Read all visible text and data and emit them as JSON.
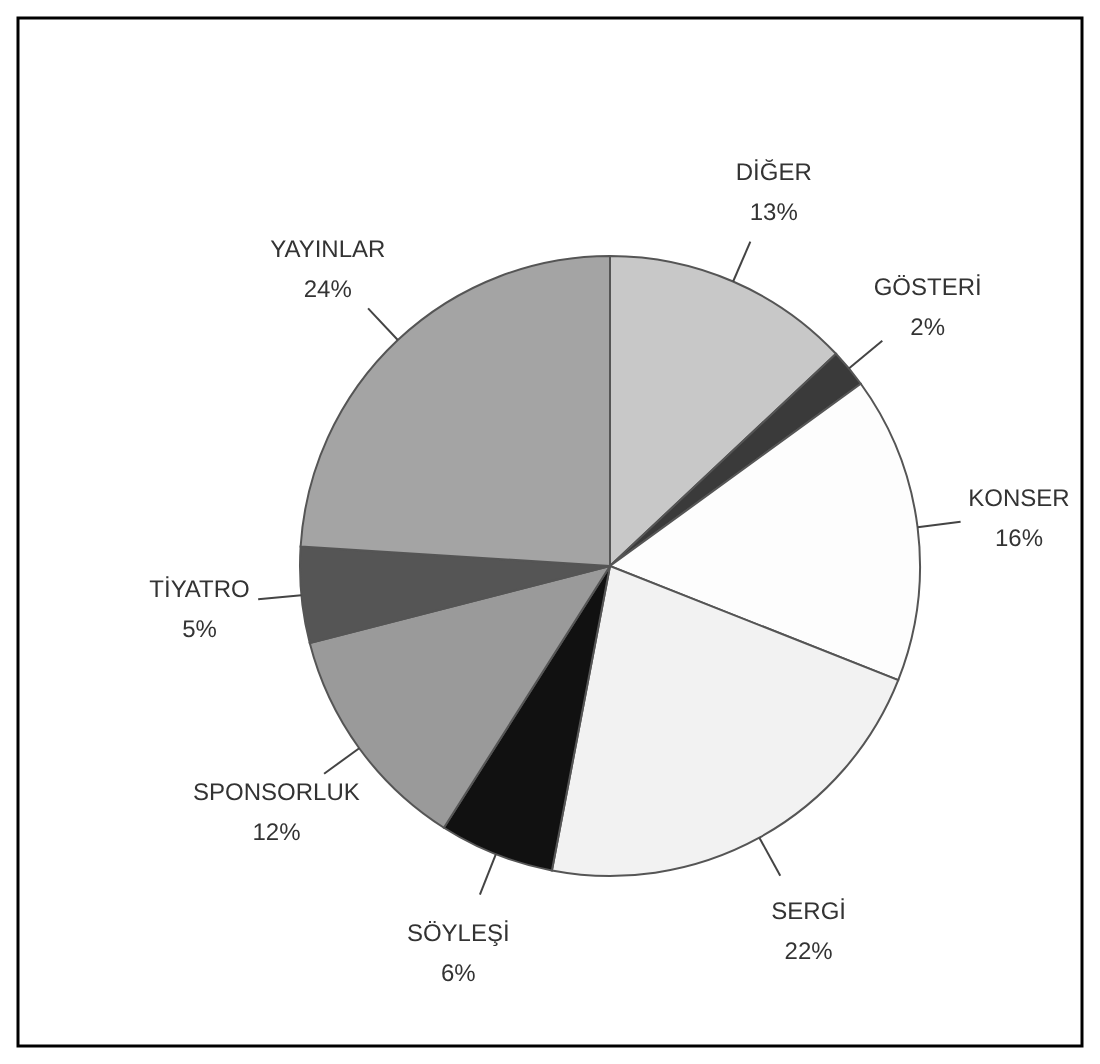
{
  "chart_data": {
    "type": "pie",
    "categories": [
      "DİĞER",
      "GÖSTERİ",
      "KONSER",
      "SERGİ",
      "SÖYLEŞİ",
      "SPONSORLUK",
      "TİYATRO",
      "YAYINLAR"
    ],
    "values": [
      13,
      2,
      16,
      22,
      6,
      12,
      5,
      24
    ],
    "value_labels": [
      "13%",
      "2%",
      "16%",
      "22%",
      "6%",
      "12%",
      "5%",
      "24%"
    ],
    "colors": [
      "#c8c8c8",
      "#3a3a3a",
      "#fdfdfd",
      "#f2f2f2",
      "#111111",
      "#9a9a9a",
      "#555555",
      "#a4a4a4"
    ]
  }
}
